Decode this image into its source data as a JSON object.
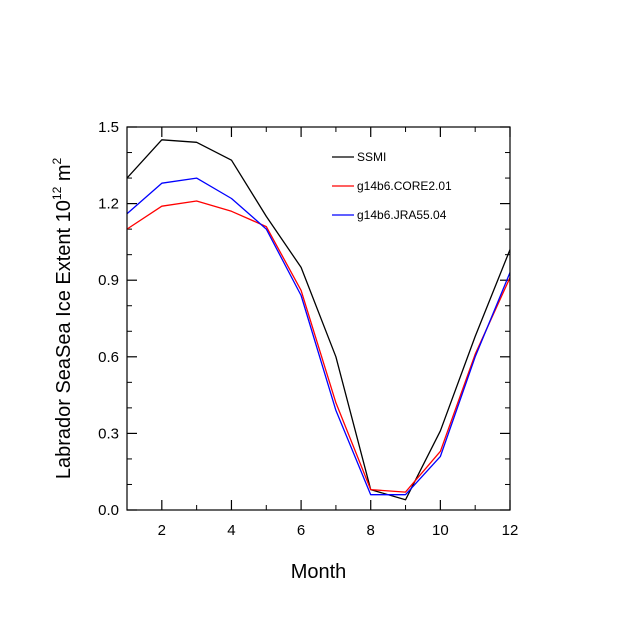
{
  "chart_data": {
    "type": "line",
    "title": "",
    "xlabel": "Month",
    "ylabel_main": "Labrador SeaSea Ice Extent 10",
    "ylabel_exp": "12",
    "ylabel_unit": " m",
    "ylabel_unit_exp": "2",
    "xlim": [
      1,
      12
    ],
    "ylim": [
      0,
      1.5
    ],
    "xticks": [
      2,
      4,
      6,
      8,
      10,
      12
    ],
    "xtick_labels": [
      "2",
      "4",
      "6",
      "8",
      "10",
      "12"
    ],
    "yticks": [
      0,
      0.3,
      0.6,
      0.9,
      1.2,
      1.5
    ],
    "ytick_labels": [
      "0.0",
      "0.3",
      "0.6",
      "0.9",
      "1.2",
      "1.5"
    ],
    "legend_position": "top-right",
    "x": [
      1,
      2,
      3,
      4,
      5,
      6,
      7,
      8,
      9,
      10,
      11,
      12
    ],
    "series": [
      {
        "name": "SSMI",
        "color": "#000000",
        "values": [
          1.3,
          1.45,
          1.44,
          1.37,
          1.15,
          0.95,
          0.6,
          0.08,
          0.04,
          0.31,
          0.68,
          1.02
        ]
      },
      {
        "name": "g14b6.CORE2.01",
        "color": "#ff0000",
        "values": [
          1.1,
          1.19,
          1.21,
          1.17,
          1.11,
          0.86,
          0.42,
          0.08,
          0.07,
          0.23,
          0.61,
          0.91
        ]
      },
      {
        "name": "g14b6.JRA55.04",
        "color": "#0000ff",
        "values": [
          1.16,
          1.28,
          1.3,
          1.22,
          1.1,
          0.84,
          0.39,
          0.06,
          0.06,
          0.21,
          0.6,
          0.93
        ]
      }
    ]
  }
}
